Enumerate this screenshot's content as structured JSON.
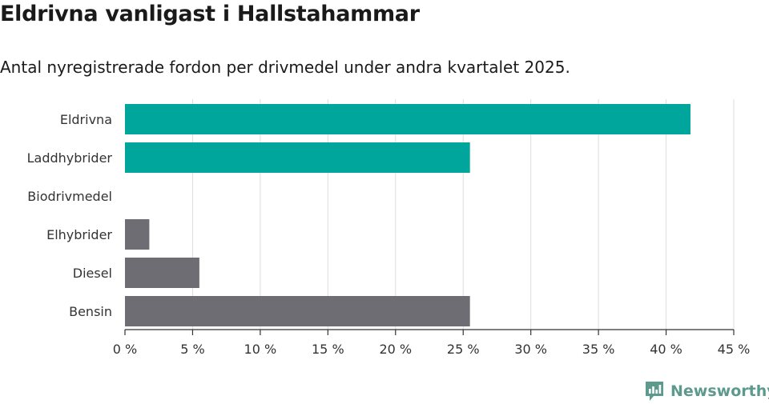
{
  "header": {
    "title": "Eldrivna vanligast i Hallstahammar",
    "subtitle": "Antal nyregistrerade fordon per drivmedel under andra kvartalet 2025."
  },
  "branding": {
    "name": "Newsworthy",
    "color": "#5c9a8e"
  },
  "colors": {
    "highlight": "#00a59b",
    "neutral": "#6e6d73",
    "grid": "#dddddd",
    "axis": "#333333"
  },
  "chart_data": {
    "type": "bar",
    "orientation": "horizontal",
    "categories": [
      "Eldrivna",
      "Laddhybrider",
      "Biodrivmedel",
      "Elhybrider",
      "Diesel",
      "Bensin"
    ],
    "values": [
      41.8,
      25.5,
      0,
      1.8,
      5.5,
      25.5
    ],
    "bar_colors": [
      "#00a59b",
      "#00a59b",
      "#6e6d73",
      "#6e6d73",
      "#6e6d73",
      "#6e6d73"
    ],
    "xlim": [
      0,
      45
    ],
    "xticks": [
      0,
      5,
      10,
      15,
      20,
      25,
      30,
      35,
      40,
      45
    ],
    "tick_suffix": " %",
    "grid": true,
    "legend": "none"
  }
}
